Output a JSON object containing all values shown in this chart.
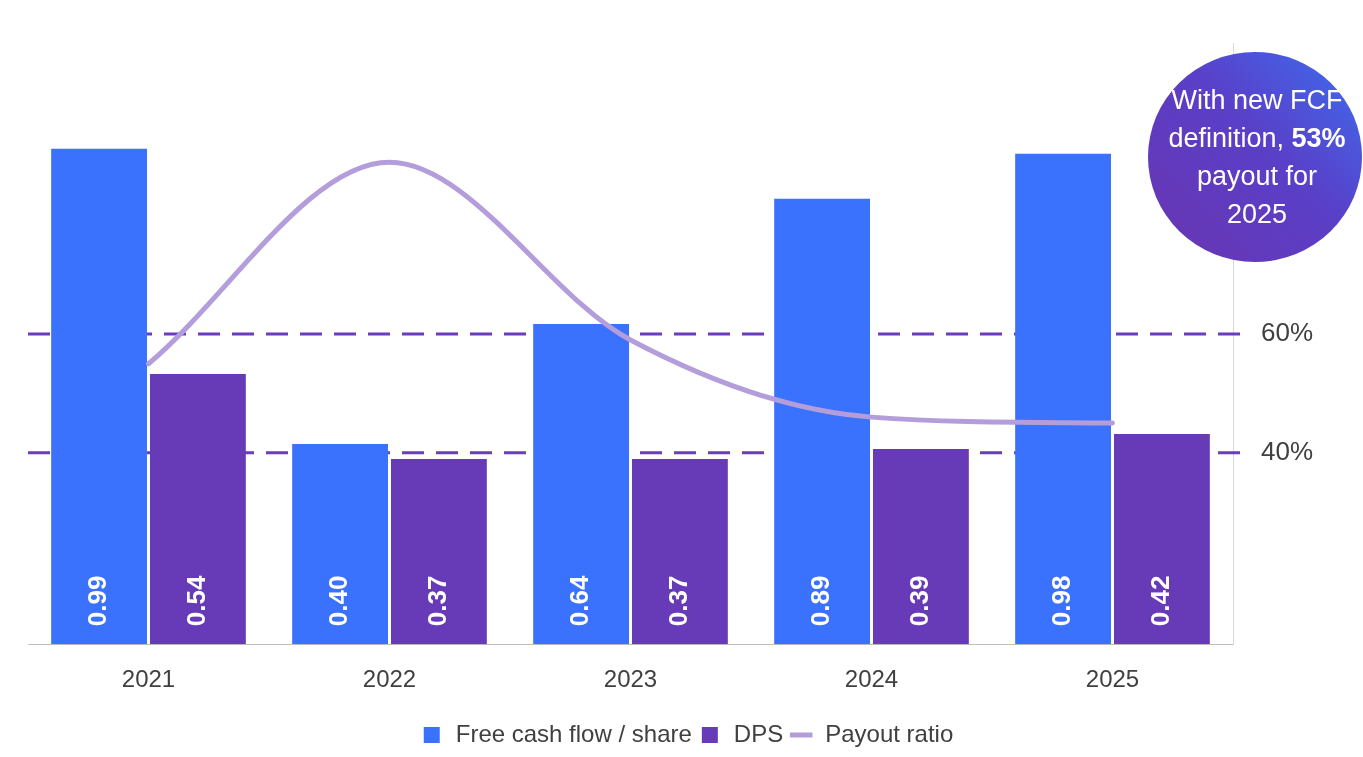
{
  "chart_data": {
    "type": "bar",
    "categories": [
      "2021",
      "2022",
      "2023",
      "2024",
      "2025"
    ],
    "series": [
      {
        "name": "Free cash flow / share",
        "color": "#3a71fd",
        "values": [
          0.99,
          0.4,
          0.64,
          0.89,
          0.98
        ],
        "value_labels": [
          "0.99",
          "0.40",
          "0.64",
          "0.89",
          "0.98"
        ]
      },
      {
        "name": "DPS",
        "color": "#673ab7",
        "values": [
          0.54,
          0.37,
          0.37,
          0.39,
          0.42
        ],
        "value_labels": [
          "0.54",
          "0.37",
          "0.37",
          "0.39",
          "0.42"
        ]
      },
      {
        "name": "Payout ratio",
        "type": "line",
        "axis": "y2",
        "color": "#b39ddb",
        "values": [
          55,
          89,
          59,
          46,
          45
        ]
      }
    ],
    "y2lim": [
      7.7,
      109
    ],
    "y2ticks": [
      {
        "value": 40,
        "label": "40%"
      },
      {
        "value": 60,
        "label": "60%"
      }
    ],
    "ref_lines": [
      {
        "axis": "y2",
        "value": 60,
        "color": "#6a3dc0",
        "line_style": "dashed"
      },
      {
        "axis": "y2",
        "value": 40,
        "color": "#6a3dc0",
        "line_style": "dashed"
      }
    ],
    "grid": false,
    "legend": "bottom",
    "marker": "none",
    "annotations": [
      "With new FCF definition, 53% payout for 2025"
    ]
  }
}
